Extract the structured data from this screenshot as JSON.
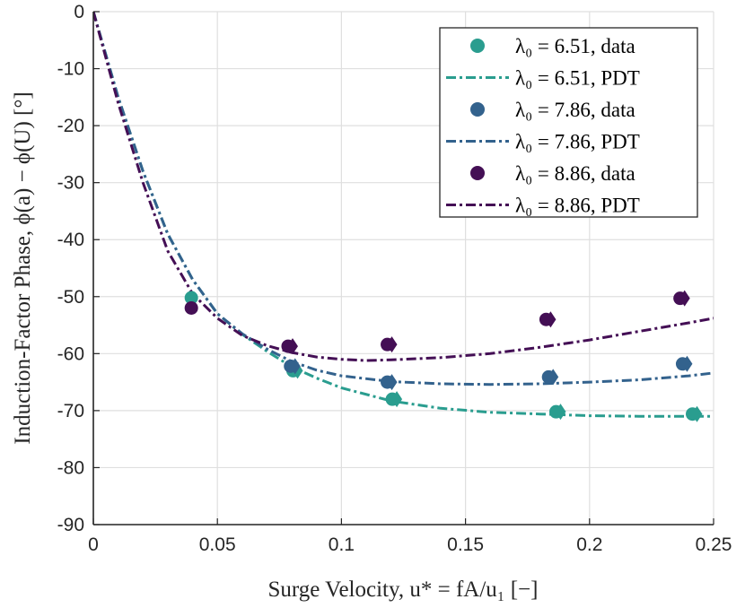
{
  "chart_data": {
    "type": "scatter",
    "xlabel": "Surge Velocity, u* = fA/u₁ [−]",
    "ylabel": "Induction-Factor Phase, ϕ(a) − ϕ(U) [°]",
    "xlim": [
      0,
      0.25
    ],
    "ylim": [
      -90,
      0
    ],
    "xticks": [
      0,
      0.05,
      0.1,
      0.15,
      0.2,
      0.25
    ],
    "xtick_labels": [
      "0",
      "0.05",
      "0.1",
      "0.15",
      "0.2",
      "0.25"
    ],
    "yticks": [
      0,
      -10,
      -20,
      -30,
      -40,
      -50,
      -60,
      -70,
      -80,
      -90
    ],
    "ytick_labels": [
      "0",
      "-10",
      "-20",
      "-30",
      "-40",
      "-50",
      "-60",
      "-70",
      "-80",
      "-90"
    ],
    "grid": true,
    "legend_position": "top-right",
    "series": [
      {
        "name": "λ₀ = 6.51, data",
        "kind": "scatter",
        "color": "#2a9d8f",
        "x": [
          0.0395,
          0.0805,
          0.1205,
          0.1865,
          0.2415
        ],
        "y": [
          -50.2,
          -63.0,
          -68.0,
          -70.2,
          -70.6
        ]
      },
      {
        "name": "λ₀ = 6.51, PDT",
        "kind": "line",
        "color": "#2a9d8f",
        "x": [
          0,
          0.01,
          0.02,
          0.03,
          0.04,
          0.05,
          0.06,
          0.07,
          0.08,
          0.09,
          0.1,
          0.12,
          0.14,
          0.16,
          0.18,
          0.2,
          0.22,
          0.24,
          0.25
        ],
        "y": [
          0,
          -15,
          -28,
          -39,
          -47,
          -53,
          -56.6,
          -59.6,
          -62.3,
          -64.3,
          -66.0,
          -68.3,
          -69.6,
          -70.3,
          -70.6,
          -70.9,
          -71.0,
          -71.0,
          -71.0
        ]
      },
      {
        "name": "λ₀ = 7.86, data",
        "kind": "scatter",
        "color": "#33628d",
        "x": [
          0.0795,
          0.1185,
          0.1835,
          0.2375
        ],
        "y": [
          -62.2,
          -65.0,
          -64.1,
          -61.8
        ]
      },
      {
        "name": "λ₀ = 7.86, PDT",
        "kind": "line",
        "color": "#33628d",
        "x": [
          0,
          0.01,
          0.02,
          0.03,
          0.04,
          0.05,
          0.06,
          0.07,
          0.08,
          0.09,
          0.1,
          0.12,
          0.14,
          0.16,
          0.18,
          0.2,
          0.22,
          0.24,
          0.25
        ],
        "y": [
          0,
          -15,
          -28,
          -39,
          -47,
          -53,
          -56.5,
          -59.2,
          -61.4,
          -62.9,
          -63.9,
          -64.9,
          -65.3,
          -65.4,
          -65.3,
          -65.0,
          -64.6,
          -63.9,
          -63.4
        ]
      },
      {
        "name": "λ₀ = 8.86, data",
        "kind": "scatter",
        "color": "#440f55",
        "x": [
          0.0395,
          0.0785,
          0.1185,
          0.1825,
          0.2365
        ],
        "y": [
          -52.0,
          -58.7,
          -58.4,
          -54.0,
          -50.3
        ]
      },
      {
        "name": "λ₀ = 8.86, PDT",
        "kind": "line",
        "color": "#440f55",
        "x": [
          0,
          0.01,
          0.02,
          0.03,
          0.04,
          0.05,
          0.06,
          0.07,
          0.08,
          0.09,
          0.1,
          0.11,
          0.12,
          0.14,
          0.16,
          0.18,
          0.2,
          0.22,
          0.24,
          0.25
        ],
        "y": [
          0,
          -16,
          -30,
          -42,
          -49.5,
          -53.8,
          -56.8,
          -58.6,
          -59.8,
          -60.6,
          -61.0,
          -61.2,
          -61.1,
          -60.7,
          -60.0,
          -58.9,
          -57.6,
          -56.1,
          -54.6,
          -53.8
        ]
      }
    ]
  }
}
